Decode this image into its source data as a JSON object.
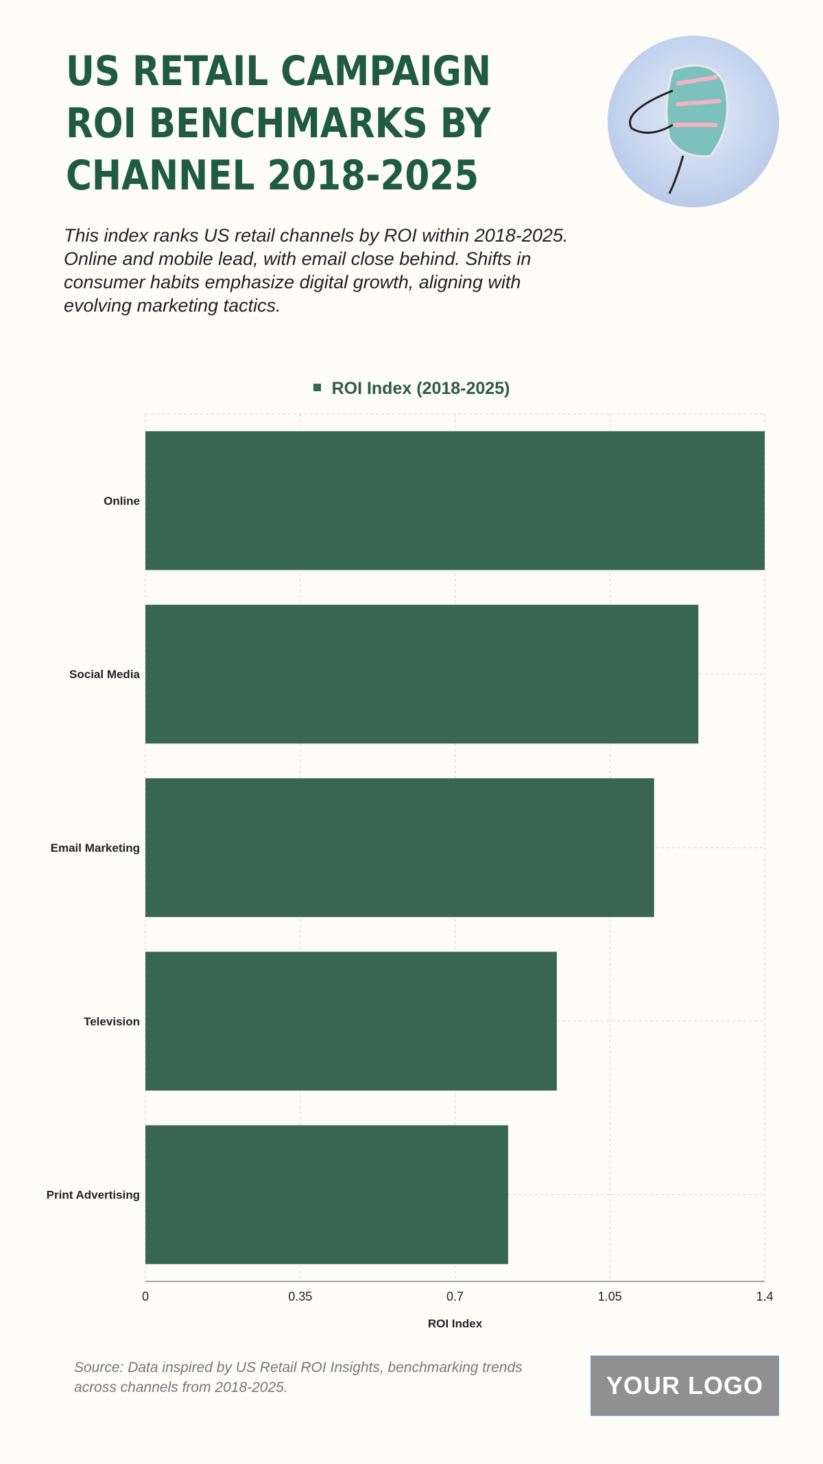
{
  "header": {
    "title": "US Retail Campaign ROI Benchmarks by Channel 2018-2025",
    "subtitle": "This index ranks US retail channels by ROI within 2018-2025. Online and mobile lead, with email close behind. Shifts in consumer habits emphasize digital growth, aligning with evolving marketing tactics."
  },
  "chart_data": {
    "type": "bar",
    "orientation": "horizontal",
    "categories": [
      "Online",
      "Social Media",
      "Email Marketing",
      "Television",
      "Print Advertising"
    ],
    "series": [
      {
        "name": "ROI Index (2018-2025)",
        "values": [
          1.4,
          1.25,
          1.15,
          0.93,
          0.82
        ],
        "color": "#386651"
      }
    ],
    "xlabel": "ROI Index",
    "ylabel": "",
    "xlim": [
      0,
      1.4
    ],
    "xticks": [
      "0",
      "0.35",
      "0.7",
      "1.05",
      "1.4"
    ],
    "grid": true,
    "legend": "top-center"
  },
  "footer": {
    "source": "Source: Data inspired by US Retail ROI Insights, benchmarking trends across channels from 2018-2025.",
    "logo": "YOUR LOGO"
  }
}
